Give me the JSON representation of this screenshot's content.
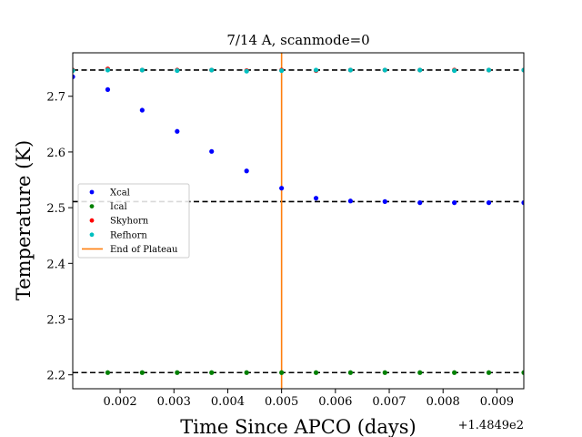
{
  "chart_data": {
    "type": "scatter",
    "title": "7/14 A, scanmode=0",
    "xlabel": "Time Since APCO (days)",
    "ylabel": "Temperature (K)",
    "x_offset_label": "+1.4849e2",
    "xlim": [
      0.00112,
      0.0095
    ],
    "ylim": [
      2.175,
      2.778
    ],
    "x_ticks": [
      0.002,
      0.003,
      0.004,
      0.005,
      0.006,
      0.007,
      0.008,
      0.009
    ],
    "x_tick_labels": [
      "0.002",
      "0.003",
      "0.004",
      "0.005",
      "0.006",
      "0.007",
      "0.008",
      "0.009"
    ],
    "y_ticks": [
      2.2,
      2.3,
      2.4,
      2.5,
      2.6,
      2.7
    ],
    "y_tick_labels": [
      "2.2",
      "2.3",
      "2.4",
      "2.5",
      "2.6",
      "2.7"
    ],
    "legend_position": "center-left",
    "series": [
      {
        "name": "Xcal",
        "color": "#0000ff",
        "x": [
          0.00112,
          0.00177,
          0.00241,
          0.00306,
          0.0037,
          0.00435,
          0.005,
          0.00564,
          0.00628,
          0.00692,
          0.00757,
          0.00821,
          0.00885,
          0.0095
        ],
        "y": [
          2.735,
          2.712,
          2.675,
          2.637,
          2.601,
          2.566,
          2.535,
          2.517,
          2.512,
          2.511,
          2.509,
          2.509,
          2.509,
          2.509
        ]
      },
      {
        "name": "Ical",
        "color": "#008000",
        "x": [
          0.00177,
          0.00241,
          0.00306,
          0.0037,
          0.00435,
          0.005,
          0.00564,
          0.00628,
          0.00692,
          0.00757,
          0.00821,
          0.00885,
          0.0095
        ],
        "y": [
          2.204,
          2.204,
          2.204,
          2.204,
          2.204,
          2.204,
          2.204,
          2.204,
          2.204,
          2.204,
          2.204,
          2.204,
          2.204
        ]
      },
      {
        "name": "Skyhorn",
        "color": "#ff0000",
        "x": [
          0.00112,
          0.00177,
          0.00241,
          0.00306,
          0.0037,
          0.00435,
          0.005,
          0.00564,
          0.00628,
          0.00692,
          0.00757,
          0.00821,
          0.00885,
          0.0095
        ],
        "y": [
          2.747,
          2.749,
          2.747,
          2.747,
          2.747,
          2.746,
          2.747,
          2.746,
          2.747,
          2.747,
          2.747,
          2.747,
          2.747,
          2.747
        ]
      },
      {
        "name": "Refhorn",
        "color": "#00bfbf",
        "x": [
          0.00112,
          0.00177,
          0.00241,
          0.00306,
          0.0037,
          0.00435,
          0.005,
          0.00564,
          0.00628,
          0.00692,
          0.00757,
          0.00821,
          0.00885,
          0.0095
        ],
        "y": [
          2.746,
          2.747,
          2.747,
          2.746,
          2.747,
          2.745,
          2.746,
          2.747,
          2.747,
          2.747,
          2.747,
          2.746,
          2.747,
          2.747
        ]
      }
    ],
    "plateau_end": {
      "name": "End of Plateau",
      "x": 0.005,
      "color": "#ff7f0e"
    },
    "reference_lines": [
      {
        "y": 2.747,
        "color": "#000000",
        "style": "dashed"
      },
      {
        "y": 2.511,
        "color": "#000000",
        "style": "dashed"
      },
      {
        "y": 2.204,
        "color": "#000000",
        "style": "dashed"
      }
    ]
  }
}
